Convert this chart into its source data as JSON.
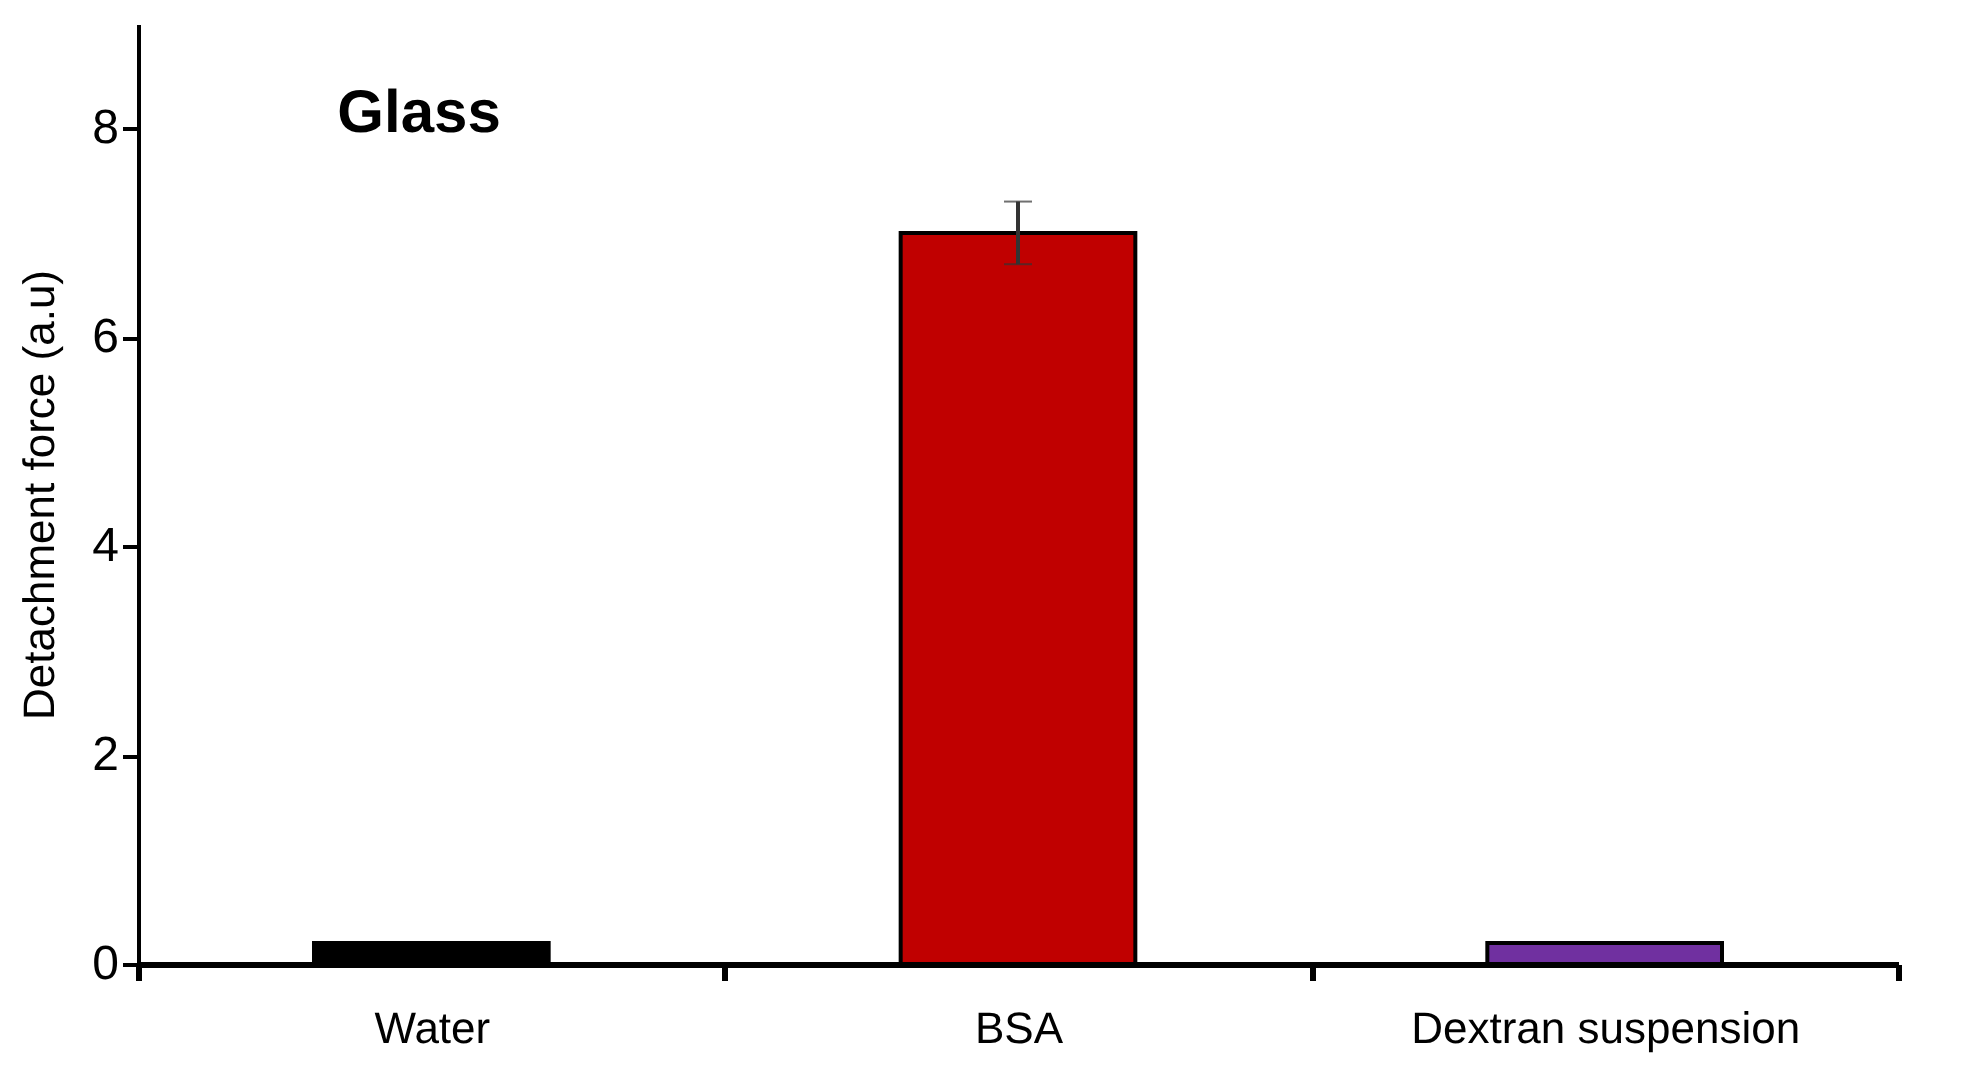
{
  "chart_data": {
    "type": "bar",
    "title": "Glass",
    "ylabel": "Detachment force (a.u)",
    "categories": [
      "Water",
      "BSA",
      "Dextran suspension"
    ],
    "values": [
      0.2,
      7.0,
      0.2
    ],
    "errors": [
      null,
      0.3,
      null
    ],
    "colors": [
      "#000000",
      "#c00000",
      "#7030a0"
    ],
    "ylim": [
      0,
      9
    ],
    "yticks": [
      0,
      2,
      4,
      6,
      8
    ],
    "grid": false,
    "legend": false
  }
}
